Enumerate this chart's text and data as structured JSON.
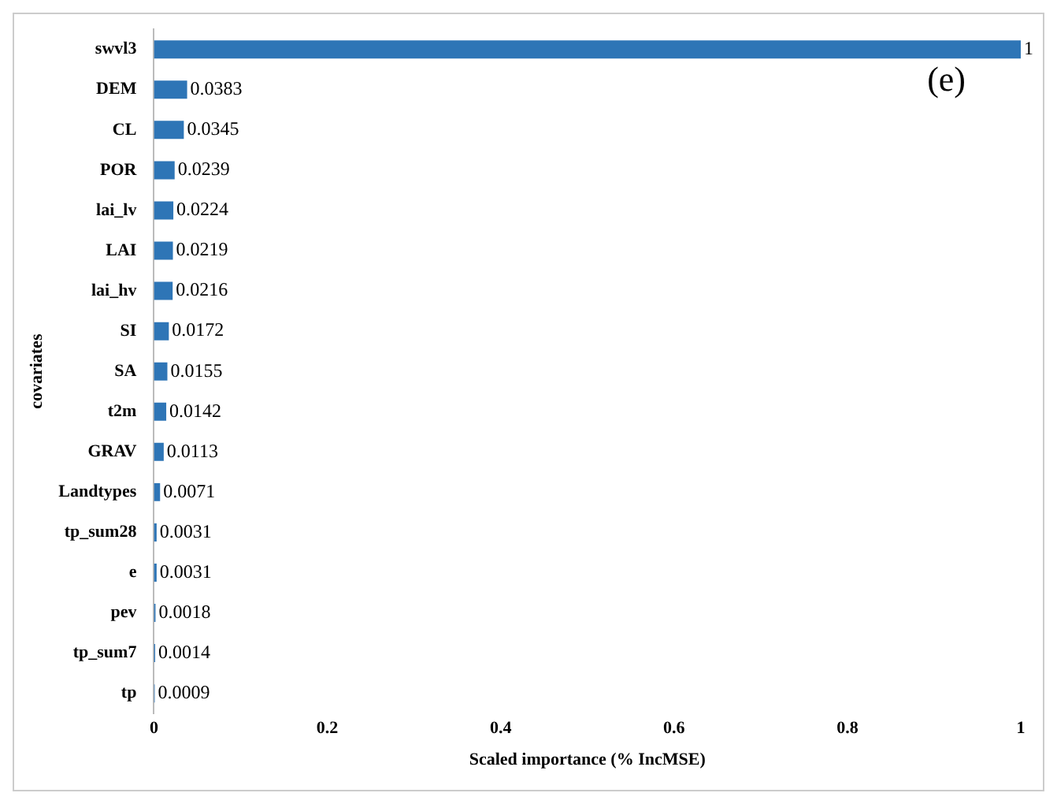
{
  "chart_data": {
    "type": "bar",
    "orientation": "horizontal",
    "categories": [
      "swvl3",
      "DEM",
      "CL",
      "POR",
      "lai_lv",
      "LAI",
      "lai_hv",
      "SI",
      "SA",
      "t2m",
      "GRAV",
      "Landtypes",
      "tp_sum28",
      "e",
      "pev",
      "tp_sum7",
      "tp"
    ],
    "values": [
      1,
      0.0383,
      0.0345,
      0.0239,
      0.0224,
      0.0219,
      0.0216,
      0.0172,
      0.0155,
      0.0142,
      0.0113,
      0.0071,
      0.0031,
      0.0031,
      0.0018,
      0.0014,
      0.0009
    ],
    "color": "#2e75b6",
    "xlim": [
      0,
      1
    ],
    "xticks": [
      0,
      0.2,
      0.4,
      0.6,
      0.8,
      1
    ],
    "xlabel": "Scaled importance (% IncMSE)",
    "ylabel": "covariates",
    "data_labels": true,
    "grid": false,
    "legend": false,
    "annotations": [
      "(e)"
    ]
  }
}
